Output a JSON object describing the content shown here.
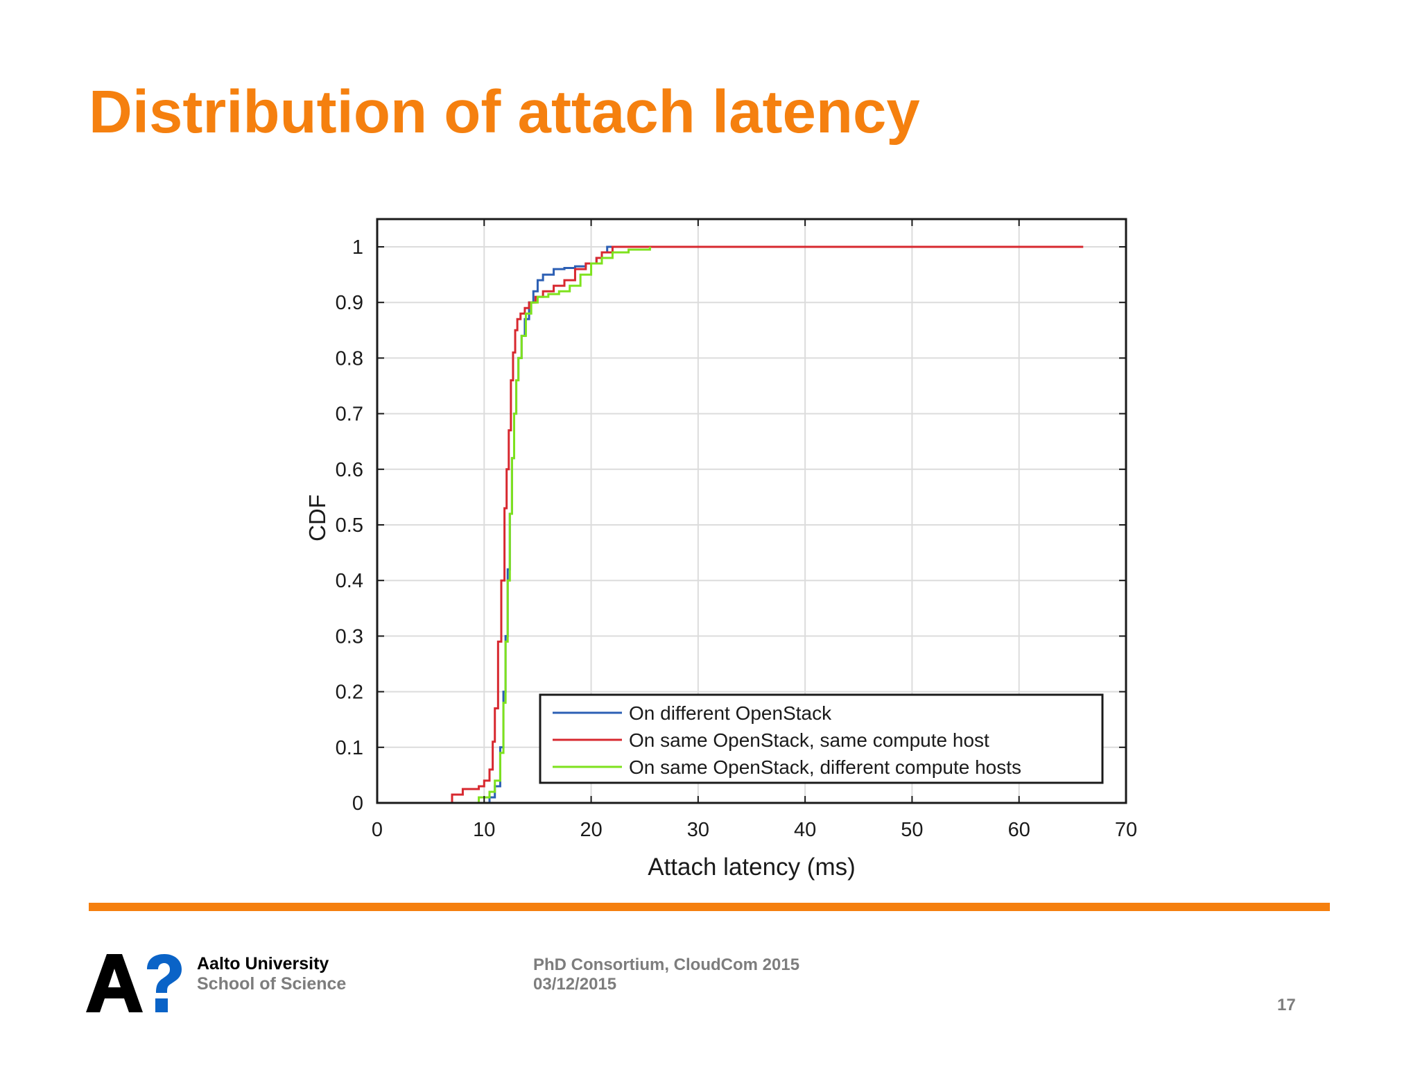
{
  "slide": {
    "title": "Distribution of attach latency",
    "footer": {
      "university": "Aalto University",
      "school": "School of Science",
      "event": "PhD Consortium, CloudCom 2015",
      "date": "03/12/2015",
      "page_number": "17"
    },
    "colors": {
      "accent": "#f5800f",
      "footer_text": "#7d7d7d",
      "logo_black": "#000000",
      "logo_blue": "#0a63c7"
    }
  },
  "chart_data": {
    "type": "line",
    "title": "",
    "xlabel": "Attach latency (ms)",
    "ylabel": "CDF",
    "xlim": [
      0,
      70
    ],
    "ylim": [
      0,
      1
    ],
    "xticks": [
      0,
      10,
      20,
      30,
      40,
      50,
      60,
      70
    ],
    "yticks": [
      0,
      0.1,
      0.2,
      0.3,
      0.4,
      0.5,
      0.6,
      0.7,
      0.8,
      0.9,
      1
    ],
    "grid": true,
    "legend_position": "bottom-right",
    "series": [
      {
        "name": "On different OpenStack",
        "color": "#2c5fb4",
        "x": [
          9.5,
          10.5,
          11.0,
          11.5,
          11.8,
          12.0,
          12.2,
          12.4,
          12.6,
          12.8,
          13.0,
          13.2,
          13.5,
          13.8,
          14.2,
          14.6,
          15.0,
          15.5,
          16.5,
          17.5,
          18.5,
          19.5,
          20.5,
          21.0,
          21.5,
          22.0
        ],
        "y": [
          0.0,
          0.01,
          0.03,
          0.1,
          0.2,
          0.3,
          0.42,
          0.52,
          0.62,
          0.7,
          0.76,
          0.8,
          0.84,
          0.87,
          0.9,
          0.92,
          0.94,
          0.95,
          0.96,
          0.962,
          0.965,
          0.97,
          0.98,
          0.99,
          1.0,
          1.0
        ]
      },
      {
        "name": "On same OpenStack, same compute host",
        "color": "#d7282f",
        "x": [
          6.5,
          7.0,
          8.0,
          9.5,
          10.0,
          10.5,
          10.8,
          11.0,
          11.3,
          11.6,
          11.9,
          12.1,
          12.3,
          12.5,
          12.7,
          12.9,
          13.1,
          13.4,
          13.8,
          14.2,
          14.8,
          15.5,
          16.5,
          17.5,
          18.5,
          19.5,
          20.5,
          21.0,
          22.0,
          66.0
        ],
        "y": [
          0.0,
          0.015,
          0.025,
          0.03,
          0.04,
          0.06,
          0.11,
          0.17,
          0.29,
          0.4,
          0.53,
          0.6,
          0.67,
          0.76,
          0.81,
          0.85,
          0.87,
          0.88,
          0.89,
          0.9,
          0.91,
          0.92,
          0.93,
          0.94,
          0.96,
          0.97,
          0.98,
          0.99,
          1.0,
          1.0
        ]
      },
      {
        "name": "On same OpenStack, different compute hosts",
        "color": "#7ee21d",
        "x": [
          8.8,
          9.5,
          10.5,
          11.0,
          11.5,
          11.8,
          12.0,
          12.2,
          12.4,
          12.6,
          12.8,
          13.0,
          13.2,
          13.5,
          13.9,
          14.4,
          15.0,
          16.0,
          17.0,
          18.0,
          19.0,
          20.0,
          21.0,
          22.0,
          23.5,
          25.5
        ],
        "y": [
          0.0,
          0.01,
          0.02,
          0.04,
          0.09,
          0.18,
          0.29,
          0.4,
          0.52,
          0.62,
          0.7,
          0.76,
          0.8,
          0.84,
          0.88,
          0.9,
          0.91,
          0.915,
          0.92,
          0.93,
          0.95,
          0.97,
          0.98,
          0.99,
          0.995,
          1.0
        ]
      }
    ]
  }
}
